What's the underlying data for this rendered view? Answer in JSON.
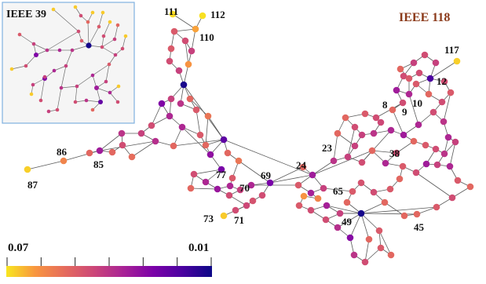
{
  "main_graph": {
    "title": "IEEE 118",
    "title_color": "#8b3a1a",
    "bus_labels": [
      "111",
      "112",
      "110",
      "117",
      "12",
      "8",
      "9",
      "10",
      "86",
      "85",
      "87",
      "23",
      "38",
      "24",
      "69",
      "77",
      "70",
      "65",
      "73",
      "71",
      "49",
      "45"
    ]
  },
  "inset_graph": {
    "title": "IEEE 39"
  },
  "colorbar": {
    "max_label": "0.07",
    "min_label": "0.01",
    "tick_count": 7,
    "gradient_stops": [
      "#f8e620",
      "#f89540",
      "#e56b5d",
      "#cb4679",
      "#a82296",
      "#7b02a8",
      "#4a02a0",
      "#0d0887"
    ]
  }
}
